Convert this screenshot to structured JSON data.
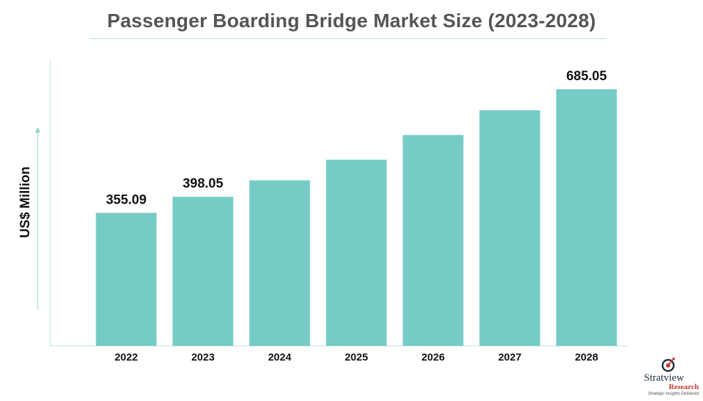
{
  "chart_data": {
    "type": "bar",
    "title": "Passenger Boarding Bridge Market Size (2023-2028)",
    "ylabel": "US$ Million",
    "xlabel": "",
    "categories": [
      "2022",
      "2023",
      "2024",
      "2025",
      "2026",
      "2027",
      "2028"
    ],
    "values": [
      355.09,
      398.05,
      442,
      497,
      563,
      629,
      685.05
    ],
    "data_labels": [
      "355.09",
      "398.05",
      "",
      "",
      "",
      "",
      "685.05"
    ],
    "ylim": [
      0,
      750
    ],
    "grid": false,
    "bar_color": "#76cbc7"
  },
  "logo": {
    "name": "Stratview",
    "sub": "Research",
    "tagline": "Strategic Insights Delivered"
  }
}
